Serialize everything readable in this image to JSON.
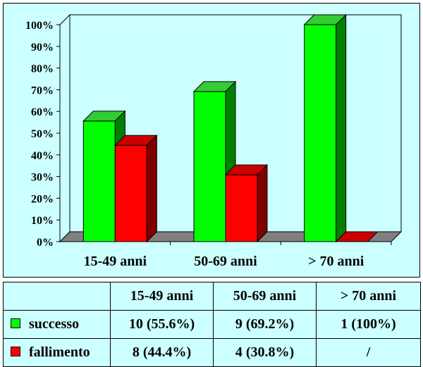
{
  "colors": {
    "successo": "#00ff00",
    "successo_side": "#008000",
    "successo_top": "#33cc33",
    "fallimento": "#ff0000",
    "fallimento_side": "#800000",
    "fallimento_top": "#cc0000",
    "floor": "#808080",
    "background": "#ccffff"
  },
  "chart_data": {
    "type": "bar",
    "categories": [
      "15-49 anni",
      "50-69 anni",
      "> 70 anni"
    ],
    "series": [
      {
        "name": "successo",
        "values": [
          55.6,
          69.2,
          100
        ]
      },
      {
        "name": "fallimento",
        "values": [
          44.4,
          30.8,
          0
        ]
      }
    ],
    "ylim": [
      0,
      100
    ],
    "yticks": [
      "0%",
      "10%",
      "20%",
      "30%",
      "40%",
      "50%",
      "60%",
      "70%",
      "80%",
      "90%",
      "100%"
    ],
    "grid": false,
    "legend": "table"
  },
  "table": {
    "headers": [
      "",
      "15-49 anni",
      "50-69 anni",
      "> 70 anni"
    ],
    "rows": [
      {
        "label": "successo",
        "cells": [
          "10 (55.6%)",
          "9 (69.2%)",
          "1 (100%)"
        ]
      },
      {
        "label": "fallimento",
        "cells": [
          "8 (44.4%)",
          "4 (30.8%)",
          "/"
        ]
      }
    ]
  }
}
